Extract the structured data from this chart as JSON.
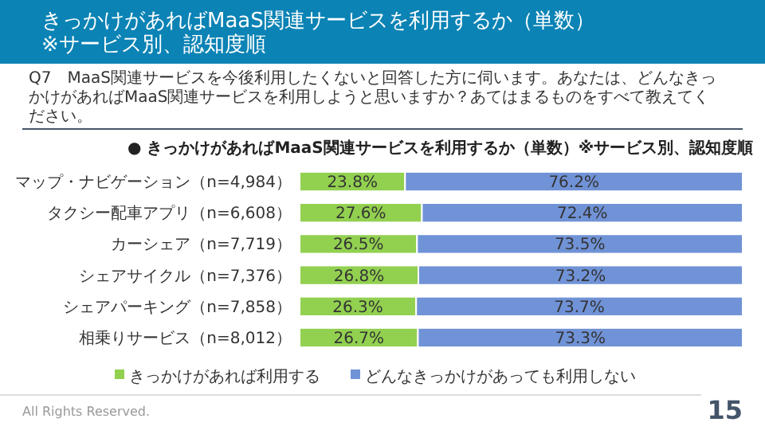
{
  "chart_data": {
    "type": "bar",
    "orientation": "horizontal",
    "stacked": true,
    "title": "きっかけがあればMaaS関連サービスを利用するか（単数）※サービス別、認知度順",
    "subtitle": "Q7　MaaS関連サービスを今後利用したくないと回答した方に伺います。あなたは、どんなきっかけがあればMaaS関連サービスを利用しようと思いますか？あてはまるものをすべて教えてください。",
    "annotations": [
      "● きっかけがあればMaaS関連サービスを利用するか（単数）※サービス別、認知度順",
      "All Rights Reserved.",
      "15"
    ],
    "categories": [
      "マップ・ナビゲーション（n=4,984）",
      "タクシー配車アプリ（n=6,608）",
      "カーシェア（n=7,719）",
      "シェアサイクル（n=7,376）",
      "シェアパーキング（n=7,858）",
      "相乗りサービス（n=8,012）"
    ],
    "series": [
      {
        "name": "きっかけがあれば利用する",
        "color": "#92d050",
        "values": [
          23.8,
          27.6,
          26.5,
          26.8,
          26.3,
          26.7
        ],
        "value_labels": [
          "23.8%",
          "27.6%",
          "26.5%",
          "26.8%",
          "26.3%",
          "26.7%"
        ]
      },
      {
        "name": "どんなきっかけがあっても利用しない",
        "color": "#7092d6",
        "values": [
          76.2,
          72.4,
          73.5,
          73.2,
          73.7,
          73.3
        ],
        "value_labels": [
          "76.2%",
          "72.4%",
          "73.5%",
          "73.2%",
          "73.7%",
          "73.3%"
        ]
      }
    ],
    "xlim": [
      0,
      100
    ],
    "tick_labels": "y",
    "legend": "bottom"
  }
}
